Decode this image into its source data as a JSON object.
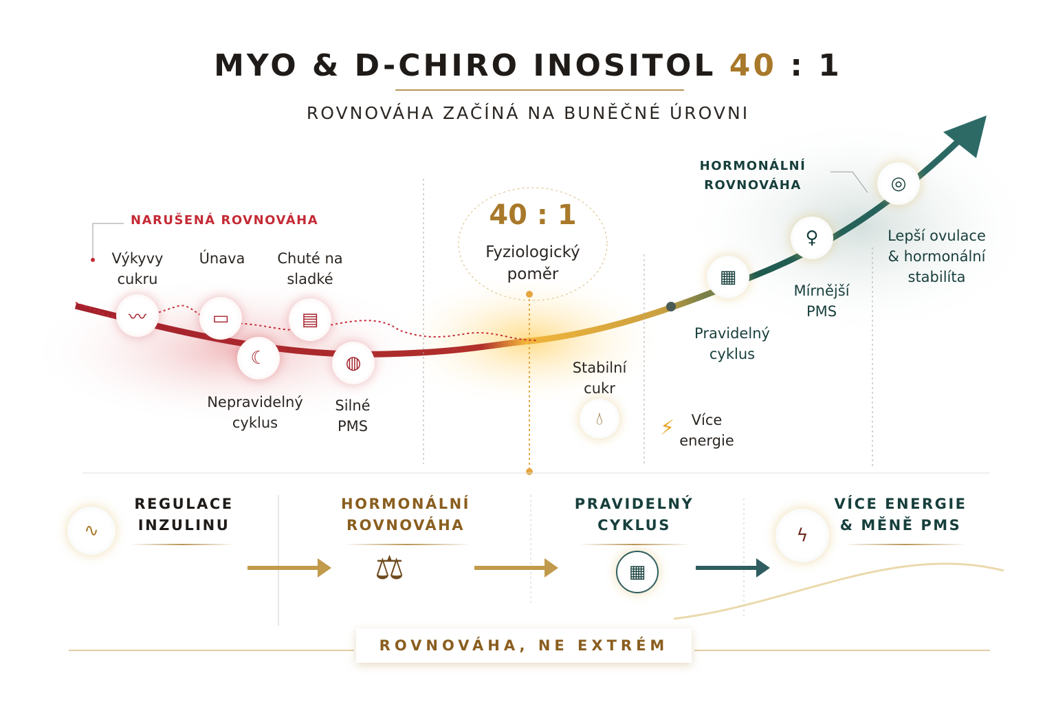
{
  "header": {
    "title_main": "MYO & D-CHIRO INOSITOL",
    "title_ratio": "40",
    "title_ratio_tail": ": 1",
    "subtitle": "ROVNOVÁHA ZAČÍNÁ NA BUNĚČNÉ ÚROVNI"
  },
  "imbalance": {
    "heading": "NARUŠENÁ ROVNOVÁHA",
    "items": [
      {
        "label": "Výkyvy cukru",
        "icon": "sugar-spike-icon"
      },
      {
        "label": "Únava",
        "icon": "low-battery-icon"
      },
      {
        "label": "Chuté na sladké",
        "icon": "cake-icon"
      },
      {
        "label": "Nepravidelný cyklus",
        "icon": "calendar-moon-icon"
      },
      {
        "label": "Silné PMS",
        "icon": "pms-icon"
      }
    ]
  },
  "center": {
    "ratio": "40 : 1",
    "caption_1": "Fyziologický",
    "caption_2": "poměr"
  },
  "middle": {
    "stable_sugar": "Stabilní cukr",
    "more_energy": "Více energie"
  },
  "balance": {
    "heading": "HORMONÁLNÍ ROVNOVÁHA",
    "items": [
      {
        "label": "Pravidelný cyklus",
        "icon": "calendar-icon"
      },
      {
        "label": "Mírnější PMS",
        "icon": "female-symbol-icon"
      },
      {
        "label": "Lepší ovulace & hormonální stabilíta",
        "icon": "target-icon"
      }
    ]
  },
  "steps": [
    {
      "line1": "REGULACE",
      "line2": "INZULINU",
      "icon": "pancreas-icon",
      "color": "#1f1b18"
    },
    {
      "line1": "HORMONÁLNÍ",
      "line2": "ROVNOVÁHA",
      "icon": "scales-icon",
      "color": "#8a5e1f"
    },
    {
      "line1": "PRAVIDELNÝ",
      "line2": "CYKLUS",
      "icon": "cycle-calendar-icon",
      "color": "#173f3c"
    },
    {
      "line1": "VÍCE ENERGIE",
      "line2": "& MĚNĚ PMS",
      "icon": "energy-icon",
      "color": "#173f3c"
    }
  ],
  "footer": "ROVNOVÁHA, NE EXTRÉM",
  "colors": {
    "red": "#c42a35",
    "gold": "#a8792a",
    "green": "#173f3c"
  }
}
